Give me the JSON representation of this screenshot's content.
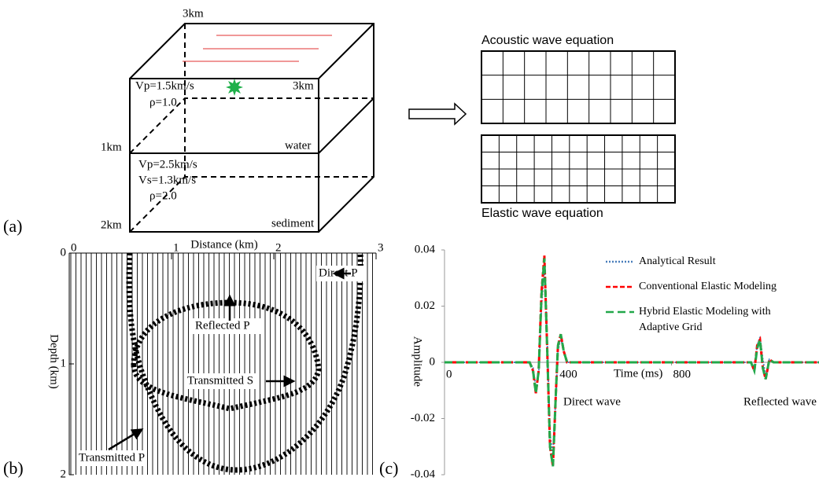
{
  "labels": {
    "a": "(a)",
    "b": "(b)",
    "c": "(c)"
  },
  "diagram": {
    "top_depth": "3km",
    "side_width": "3km",
    "water_depth": "1km",
    "bottom_depth": "2km",
    "water": {
      "vp": "Vp=1.5km/s",
      "rho": "ρ=1.0",
      "name": "water"
    },
    "sediment": {
      "vp": "Vp=2.5km/s",
      "vs": "Vs=1.3km/s",
      "rho": "ρ=2.0",
      "name": "sediment"
    },
    "acoustic": "Acoustic wave equation",
    "elastic": "Elastic wave equation"
  },
  "chart_data": [
    {
      "type": "seismogram",
      "x_label": "Distance (km)",
      "y_label": "Depth (km)",
      "xlim": [
        0,
        3
      ],
      "ylim": [
        0,
        2
      ],
      "xticks": [
        0,
        1,
        2,
        3
      ],
      "yticks": [
        0,
        1,
        2
      ],
      "annotations": [
        "Direct P",
        "Reflected P",
        "Transmitted S",
        "Transmitted P"
      ]
    },
    {
      "type": "line",
      "x_label": "Time (ms)",
      "y_label": "Amplitude",
      "annotations": [
        "Direct wave",
        "Reflected wave"
      ],
      "x": [
        0,
        300,
        312,
        322,
        332,
        342,
        352,
        362,
        372,
        382,
        392,
        400,
        410,
        420,
        432,
        1060,
        1080,
        1092,
        1102,
        1112,
        1122,
        1132,
        1145,
        1160,
        1320
      ],
      "xlim": [
        0,
        1320
      ],
      "ylim": [
        -0.04,
        0.04
      ],
      "xticks": [
        0,
        400,
        800
      ],
      "yticks": [
        -0.04,
        -0.02,
        0,
        0.02,
        0.04
      ],
      "series": [
        {
          "name": "Analytical Result",
          "color": "#4a7ebb",
          "dash": "2 2",
          "values": [
            0,
            0,
            -0.002,
            -0.009,
            -0.004,
            0.02,
            0.035,
            0.008,
            -0.026,
            -0.033,
            -0.013,
            0.004,
            0.009,
            0.004,
            0,
            0,
            0,
            -0.002,
            0.006,
            0.009,
            0.001,
            -0.005,
            0.001,
            0,
            0
          ]
        },
        {
          "name": "Conventional Elastic Modeling",
          "color": "#ff0000",
          "dash": "6 3",
          "values": [
            0,
            0,
            -0.003,
            -0.011,
            -0.003,
            0.025,
            0.038,
            0.005,
            -0.03,
            -0.037,
            -0.012,
            0.006,
            0.01,
            0.004,
            0,
            0,
            0,
            -0.003,
            0.006,
            0.008,
            -0.002,
            -0.006,
            0.001,
            0,
            0
          ]
        },
        {
          "name": "Hybrid Elastic Modeling with Adaptive Grid",
          "color": "#22a84a",
          "dash": "10 5",
          "values": [
            0,
            0,
            -0.003,
            -0.011,
            -0.003,
            0.024,
            0.037,
            0.005,
            -0.03,
            -0.037,
            -0.012,
            0.006,
            0.01,
            0.004,
            0,
            0,
            0,
            -0.003,
            0.005,
            0.008,
            -0.002,
            -0.006,
            0.001,
            0,
            0
          ]
        }
      ]
    }
  ]
}
